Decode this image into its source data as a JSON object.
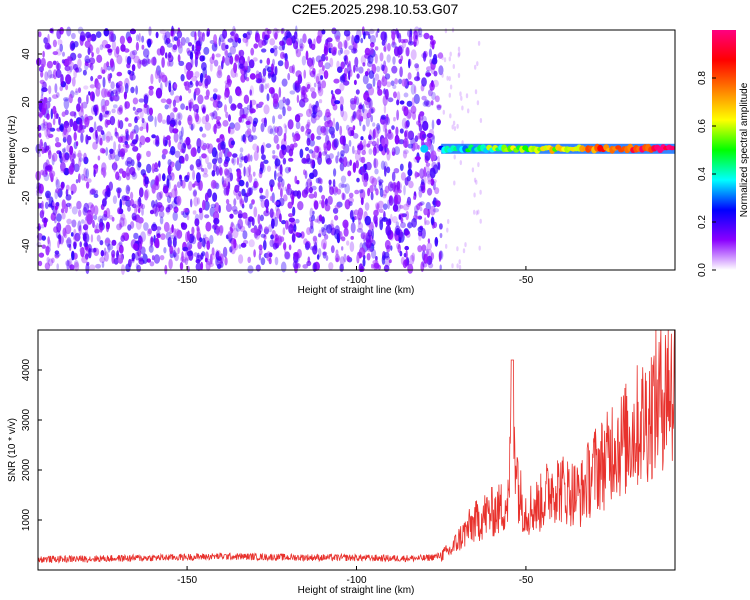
{
  "title": "C2E5.2025.298.10.53.G07",
  "chart_data": [
    {
      "type": "heatmap",
      "xlabel": "Height of straight line (km)",
      "ylabel": "Frequency (Hz)",
      "xlim": [
        -194,
        -6
      ],
      "ylim": [
        -50,
        50
      ],
      "xticks": [
        -150,
        -100,
        -50
      ],
      "yticks": [
        -40,
        -20,
        0,
        20,
        40
      ],
      "colorbar": {
        "label": "Normalized spectral amplitude",
        "range": [
          0,
          1
        ],
        "ticks": [
          "0.0",
          "0.2",
          "0.4",
          "0.6",
          "0.8"
        ],
        "colormap": [
          "#ffffff",
          "#8a00ff",
          "#0000ff",
          "#00ffff",
          "#00ff00",
          "#ffff00",
          "#ff8000",
          "#ff0000",
          "#ff0080"
        ]
      },
      "features": {
        "noise_region_x": [
          -194,
          -75
        ],
        "noise_amplitude_range": [
          0.0,
          0.25
        ],
        "carrier_start_x": -75,
        "carrier_freq_hz": 0.5,
        "carrier_amplitude_range": [
          0.35,
          0.95
        ]
      }
    },
    {
      "type": "line",
      "xlabel": "Height of straight line (km)",
      "ylabel": "SNR (10 * v/v)",
      "xlim": [
        -194,
        -6
      ],
      "ylim": [
        0,
        4800
      ],
      "xticks": [
        -150,
        -100,
        -50
      ],
      "yticks": [
        1000,
        2000,
        3000,
        4000
      ],
      "color": "#e8312c",
      "series": [
        {
          "name": "SNR",
          "x": [
            -194,
            -180,
            -160,
            -140,
            -120,
            -100,
            -90,
            -80,
            -76,
            -72,
            -70,
            -66,
            -62,
            -58,
            -55,
            -54,
            -52,
            -50,
            -46,
            -42,
            -38,
            -34,
            -30,
            -26,
            -24,
            -22,
            -18,
            -14,
            -10,
            -8,
            -6
          ],
          "y": [
            200,
            210,
            230,
            260,
            240,
            230,
            220,
            220,
            260,
            400,
            600,
            900,
            1100,
            1200,
            1400,
            3500,
            1500,
            1200,
            1300,
            1700,
            1600,
            1500,
            2000,
            2200,
            2600,
            2500,
            2800,
            3100,
            3500,
            3800,
            3700
          ]
        }
      ]
    }
  ]
}
